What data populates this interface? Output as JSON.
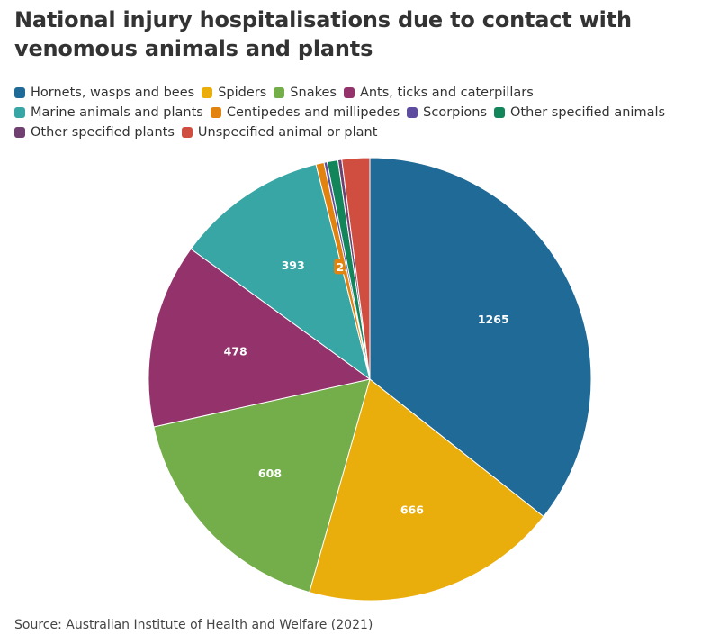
{
  "title": "National injury hospitalisations due to contact with venomous animals and plants",
  "source": "Source: Australian Institute of Health and Welfare (2021)",
  "chart_data": {
    "type": "pie",
    "title": "National injury hospitalisations due to contact with venomous animals and plants",
    "legend_position": "top",
    "slices": [
      {
        "label": "Hornets, wasps and bees",
        "value": 1265,
        "color": "#1f6a96",
        "show_label": true
      },
      {
        "label": "Spiders",
        "value": 666,
        "color": "#e9ad0c",
        "show_label": true
      },
      {
        "label": "Snakes",
        "value": 608,
        "color": "#73ae4a",
        "show_label": true
      },
      {
        "label": "Ants, ticks and caterpillars",
        "value": 478,
        "color": "#94326c",
        "show_label": true
      },
      {
        "label": "Marine animals and plants",
        "value": 393,
        "color": "#38a6a5",
        "show_label": true
      },
      {
        "label": "Centipedes and millipedes",
        "value": 21,
        "color": "#e1830e",
        "show_label": true
      },
      {
        "label": "Scorpions",
        "value": 8,
        "color": "#5e4c9f",
        "show_label": false
      },
      {
        "label": "Other specified animals",
        "value": 28,
        "color": "#13855b",
        "show_label": false
      },
      {
        "label": "Other specified plants",
        "value": 10,
        "color": "#6f4070",
        "show_label": false
      },
      {
        "label": "Unspecified animal or plant",
        "value": 72,
        "color": "#cf4e3f",
        "show_label": false
      }
    ]
  }
}
